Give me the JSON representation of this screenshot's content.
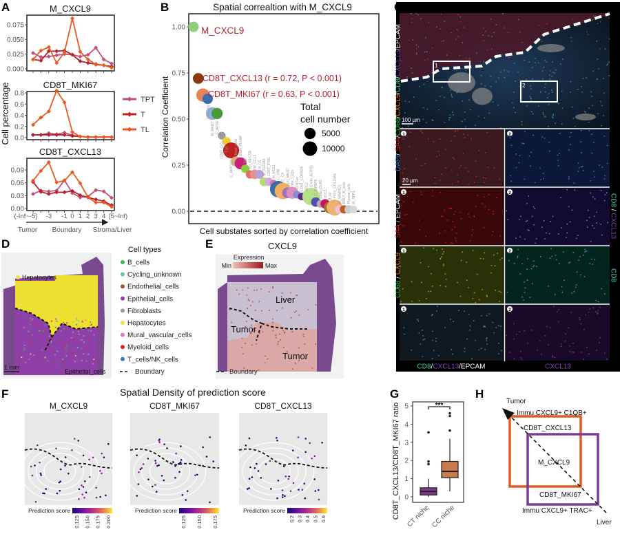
{
  "panel_labels": [
    "A",
    "B",
    "C",
    "D",
    "E",
    "F",
    "G",
    "H"
  ],
  "chart_data": [
    {
      "panel": "A",
      "type": "line",
      "ylabel": "Cell percentage",
      "x_categories": [
        "(-Inf~-5]",
        "-4",
        "-3",
        "-2",
        "-1",
        "0",
        "1",
        "2",
        "3",
        "4",
        "[5~Inf)"
      ],
      "x_tick_labels": [
        "(-Inf~-5]",
        "-3",
        "-1",
        "0",
        "1",
        "2",
        "3",
        "4",
        "[5~Inf)"
      ],
      "axis_annotation": {
        "left": "Tumor",
        "middle": "Boundary",
        "right": "Stroma/Liver"
      },
      "legend": [
        {
          "name": "TPT",
          "color": "#c0507a"
        },
        {
          "name": "T",
          "color": "#b5202a"
        },
        {
          "name": "TL",
          "color": "#e85a20"
        }
      ],
      "subplots": [
        {
          "title": "M_CXCL9",
          "ylim": [
            0,
            0.09
          ],
          "yticks": [
            "0.000",
            "0.025",
            "0.050",
            "0.075"
          ],
          "ytick_values": [
            0,
            0.025,
            0.05,
            0.075
          ],
          "series": [
            {
              "name": "TPT",
              "values": [
                0.027,
                0.02,
                0.021,
                0.023,
                0.025,
                0.024,
                0.021,
                0.024,
                0.036,
                0.016,
                0.009
              ]
            },
            {
              "name": "T",
              "values": [
                0.016,
                0.014,
                0.03,
                0.03,
                0.031,
                0.024,
                0.013,
                0.01,
                0.008,
                0.006,
                0.004
              ]
            },
            {
              "name": "TL",
              "values": [
                0.016,
                0.031,
                0.037,
                0.01,
                0.028,
                0.086,
                0.029,
                0.016,
                0.007,
                0.006,
                0.002
              ]
            }
          ]
        },
        {
          "title": "CD8T_MKI67",
          "ylim": [
            0,
            0.85
          ],
          "yticks": [
            "0.0",
            "0.2",
            "0.4",
            "0.6",
            "0.8"
          ],
          "ytick_values": [
            0,
            0.2,
            0.4,
            0.6,
            0.8
          ],
          "series": [
            {
              "name": "TPT",
              "values": [
                0.05,
                0.05,
                0.08,
                0.06,
                0.09,
                0.04,
                0.02,
                0.01,
                0.01,
                0.01,
                0.01
              ]
            },
            {
              "name": "T",
              "values": [
                0.05,
                0.05,
                0.05,
                0.05,
                0.05,
                0.03,
                0.02,
                0.01,
                0.01,
                0.01,
                0.01
              ]
            },
            {
              "name": "TL",
              "values": [
                0.23,
                0.36,
                0.47,
                0.84,
                0.63,
                0.1,
                0.02,
                0.01,
                0.01,
                0.01,
                0.01
              ]
            }
          ]
        },
        {
          "title": "CD8T_CXCL13",
          "ylim": [
            0,
            0.112
          ],
          "yticks": [
            "0.00",
            "0.03",
            "0.06",
            "0.09"
          ],
          "ytick_values": [
            0,
            0.03,
            0.06,
            0.09
          ],
          "series": [
            {
              "name": "TPT",
              "values": [
                0.034,
                0.042,
                0.04,
                0.042,
                0.066,
                0.036,
                0.026,
                0.028,
                0.043,
                0.04,
                0.025
              ]
            },
            {
              "name": "T",
              "values": [
                0.062,
                0.039,
                0.034,
                0.038,
                0.038,
                0.041,
                0.031,
                0.026,
                0.021,
                0.017,
                0.008
              ]
            },
            {
              "name": "TL",
              "values": [
                0.065,
                0.088,
                0.108,
                0.061,
                0.065,
                0.085,
                0.059,
                0.026,
                0.014,
                0.014,
                0.004
              ]
            }
          ]
        }
      ]
    },
    {
      "panel": "B",
      "type": "scatter",
      "title": "Spatial correaltion with M_CXCL9",
      "xlabel": "Cell substates sorted by correlation coefficient",
      "ylabel": "Correlation Coefficient",
      "ylim": [
        -0.05,
        1.07
      ],
      "yticks": [
        "0.00",
        "0.25",
        "0.50",
        "0.75",
        "1.00"
      ],
      "ytick_values": [
        0,
        0.25,
        0.5,
        0.75,
        1.0
      ],
      "reference_line": 0,
      "size_legend": {
        "title_lines": [
          "Total",
          "cell number"
        ],
        "entries": [
          5000,
          10000
        ]
      },
      "annotations": [
        "M_CXCL9",
        "CD8T_CXCL13 (r = 0.72, P < 0.001)",
        "CD8T_MKI67 (r = 0.63, P < 0.001)"
      ],
      "annotation_color": "#b22030",
      "points": [
        {
          "label": "",
          "r": 1.0,
          "cells": 4000,
          "color": "#8fcf7a"
        },
        {
          "label": "",
          "r": 0.72,
          "cells": 4500,
          "color": "#8b3a12"
        },
        {
          "label": "",
          "r": 0.63,
          "cells": 8000,
          "color": "#e8825a"
        },
        {
          "label": "CD4Treg",
          "r": 0.61,
          "cells": 4000,
          "color": "#3a6fb0"
        },
        {
          "label": "M_MKI67",
          "r": 0.53,
          "cells": 7000,
          "color": "#8ab0d8"
        },
        {
          "label": "C_APOE",
          "r": 0.53,
          "cells": 5000,
          "color": "#4a9a3a"
        },
        {
          "label": "CD8T_CCL",
          "r": 0.41,
          "cells": 1500,
          "color": "#999999"
        },
        {
          "label": "Tgd",
          "r": 0.38,
          "cells": 2000,
          "color": "#f0d030"
        },
        {
          "label": "C_AKR1C2",
          "r": 0.33,
          "cells": 13000,
          "color": "#c0201e"
        },
        {
          "label": "Mast_cells",
          "r": 0.27,
          "cells": 3500,
          "color": "#d6b080"
        },
        {
          "label": "Endo_PLVAP",
          "r": 0.26,
          "cells": 6000,
          "color": "#c8207a"
        },
        {
          "label": "NK",
          "r": 0.23,
          "cells": 2000,
          "color": "#8ccc40"
        },
        {
          "label": "Ep_MUC5B",
          "r": 0.2,
          "cells": 2000,
          "color": "#e07060"
        },
        {
          "label": "M_CCL3",
          "r": 0.2,
          "cells": 3000,
          "color": "#e89090"
        },
        {
          "label": "B_DZ",
          "r": 0.2,
          "cells": 2500,
          "color": "#b8a0d8"
        },
        {
          "label": "M_S100A8",
          "r": 0.16,
          "cells": 2500,
          "color": "#b8dc70"
        },
        {
          "label": "CD8T_IFNG",
          "r": 0.16,
          "cells": 2000,
          "color": "#c8b0e0"
        },
        {
          "label": "M_MGLL",
          "r": 0.15,
          "cells": 1500,
          "color": "#e070b0"
        },
        {
          "label": "C_VIM",
          "r": 0.12,
          "cells": 14000,
          "color": "#3a6ea8"
        },
        {
          "label": "C_CP",
          "r": 0.11,
          "cells": 14000,
          "color": "#f0b060"
        },
        {
          "label": "Lym_MKI67",
          "r": 0.1,
          "cells": 4500,
          "color": "#a070c0"
        },
        {
          "label": "Mo_C1Qs",
          "r": 0.1,
          "cells": 6000,
          "color": "#d890c0"
        },
        {
          "label": "CD47os",
          "r": 0.09,
          "cells": 1500,
          "color": "#8090d0"
        },
        {
          "label": "CD8T_CDKN2A",
          "r": 0.08,
          "cells": 1500,
          "color": "#6a2a8a"
        },
        {
          "label": "cDC2",
          "r": 0.08,
          "cells": 2000,
          "color": "#3a9a60"
        },
        {
          "label": "Endo_ACKR1",
          "r": 0.08,
          "cells": 16000,
          "color": "#b8e08a"
        },
        {
          "label": "C_IGFBP6",
          "r": 0.05,
          "cells": 3000,
          "color": "#5050a8"
        },
        {
          "label": "Endo_CLAC",
          "r": 0.04,
          "cells": 1500,
          "color": "#b0b0b0"
        },
        {
          "label": "cDC1",
          "r": 0.04,
          "cells": 3000,
          "color": "#d0106a"
        },
        {
          "label": "B_fol",
          "r": 0.02,
          "cells": 6000,
          "color": "#a07820"
        },
        {
          "label": "Fibro_COL10A1",
          "r": 0.02,
          "cells": 13000,
          "color": "#f0b070"
        },
        {
          "label": "M_SAMHD1",
          "r": 0.01,
          "cells": 2000,
          "color": "#f0c0d8"
        },
        {
          "label": "MALT_B_cells",
          "r": 0.01,
          "cells": 2000,
          "color": "#c06020"
        },
        {
          "label": "Plasma_cells",
          "r": 0.01,
          "cells": 2000,
          "color": "#cccccc"
        },
        {
          "label": "M_SPP1",
          "r": 0.01,
          "cells": 1500,
          "color": "#d8d8d8"
        }
      ]
    },
    {
      "panel": "G",
      "type": "box",
      "ylabel": "CD8T_CXCL13/CD8T_MKI67 ratio",
      "ylim": [
        0,
        5
      ],
      "yticks": [
        "0",
        "1",
        "2",
        "3",
        "4",
        "5"
      ],
      "significance": "***",
      "groups": [
        {
          "name": "CT niche",
          "color": "#7a3a8a",
          "whisker_low": 0.0,
          "q1": 0.1,
          "median": 0.3,
          "q3": 0.5,
          "whisker_high": 1.0,
          "outliers": [
            1.8,
            1.95,
            3.55
          ]
        },
        {
          "name": "CC niche",
          "color": "#c87a4a",
          "whisker_low": 0.3,
          "q1": 1.05,
          "median": 1.4,
          "q3": 1.95,
          "whisker_high": 3.2,
          "outliers": [
            3.65,
            4.45,
            4.6
          ]
        }
      ]
    }
  ],
  "panel_C": {
    "top_channel_label": [
      {
        "text": "DAPI",
        "color": "#3a7ad8"
      },
      {
        "text": "/ ",
        "color": "#ffffff"
      },
      {
        "text": "SAA",
        "color": "#e02020"
      },
      {
        "text": "/",
        "color": "#ffffff"
      },
      {
        "text": "CD68",
        "color": "#30c050"
      },
      {
        "text": "/",
        "color": "#ffffff"
      },
      {
        "text": "CXCL9",
        "color": "#f08020"
      },
      {
        "text": "/",
        "color": "#ffffff"
      },
      {
        "text": "CD8",
        "color": "#40d0b0"
      },
      {
        "text": "/",
        "color": "#ffffff"
      },
      {
        "text": "CXCL13",
        "color": "#8040c0"
      },
      {
        "text": "/EPCAM",
        "color": "#ffffff"
      }
    ],
    "row2_left_label": [
      {
        "text": "SAA",
        "color": "#e02020"
      },
      {
        "text": " / EPCAM",
        "color": "#ffffff"
      }
    ],
    "row3_left_label": [
      {
        "text": "CD68",
        "color": "#30c050"
      },
      {
        "text": " / ",
        "color": "#ffffff"
      },
      {
        "text": "CXCL9",
        "color": "#f08020"
      }
    ],
    "row2_right_label": [
      {
        "text": "CD8",
        "color": "#40d0b0"
      },
      {
        "text": " / ",
        "color": "#ffffff"
      },
      {
        "text": "CXCL13",
        "color": "#8040c0"
      }
    ],
    "row3_right_label": [
      {
        "text": "CD8",
        "color": "#40d0b0"
      }
    ],
    "bottom_left_label": [
      {
        "text": "CD8",
        "color": "#40d0b0"
      },
      {
        "text": "/",
        "color": "#ffffff"
      },
      {
        "text": "CXCL13",
        "color": "#8040c0"
      },
      {
        "text": "/EPCAM",
        "color": "#ffffff"
      }
    ],
    "bottom_right_label": [
      {
        "text": "CXCL13",
        "color": "#8040c0"
      }
    ],
    "scale_top": "100 µm",
    "scale_inset": "20 µm",
    "roi_labels": [
      "1",
      "2"
    ]
  },
  "panel_D": {
    "legend_title": "Cell types",
    "cell_types": [
      {
        "name": "B_cells",
        "color": "#4caf50"
      },
      {
        "name": "Cycling_unknown",
        "color": "#66c2a5"
      },
      {
        "name": "Endothelial_cells",
        "color": "#a0522d"
      },
      {
        "name": "Epithelial_cells",
        "color": "#8e3fa8"
      },
      {
        "name": "Fibroblasts",
        "color": "#9a9a9a"
      },
      {
        "name": "Hepatocytes",
        "color": "#f0e040"
      },
      {
        "name": "Mural_vascular_cells",
        "color": "#e377c2"
      },
      {
        "name": "Myeloid_cells",
        "color": "#d62728"
      },
      {
        "name": "T_cells/NK_cells",
        "color": "#3a7ac0"
      }
    ],
    "boundary_label": "Boundary",
    "map_labels": {
      "top": "Hepatocytes",
      "bottom": "Epithelial_cells"
    },
    "scale": "1 mm"
  },
  "panel_E": {
    "title": "CXCL9",
    "colorbar_title": "Expression",
    "colorbar_min": "Min",
    "colorbar_max": "Max",
    "colorbar_colors": [
      "#f4c0b8",
      "#a01818"
    ],
    "region_labels": [
      "Liver",
      "Tumor",
      "Tumor"
    ],
    "boundary_label": "Boundary"
  },
  "panel_F": {
    "title": "Spatial Density of prediction score",
    "colorbar_label": "Prediction score",
    "colormap": [
      "#1a0a78",
      "#6a10a0",
      "#b03090",
      "#e06060",
      "#f0a040",
      "#f8e840"
    ],
    "subplots": [
      {
        "title": "M_CXCL9",
        "ticks": [
          "0.125",
          "0.150",
          "0.175",
          "0.200"
        ]
      },
      {
        "title": "CD8T_MKI67",
        "ticks": [
          "0.125",
          "0.150",
          "0.175"
        ]
      },
      {
        "title": "CD8T_CXCL13",
        "ticks": [
          "0.2",
          "0.3",
          "0.4",
          "0.5",
          "0.6"
        ]
      }
    ]
  },
  "panel_H": {
    "top_label": "Tumor",
    "bottom_label": "Liver",
    "orange_box_label": "Immu CXCL9+ C1QB+",
    "purple_box_label": "Immu CXCL9+ TRAC+",
    "inner_labels": [
      "CD8T_CXCL13",
      "M_CXCL9",
      "CD8T_MKI67"
    ],
    "orange_color": "#e05a20",
    "purple_color": "#7a3a9a"
  }
}
